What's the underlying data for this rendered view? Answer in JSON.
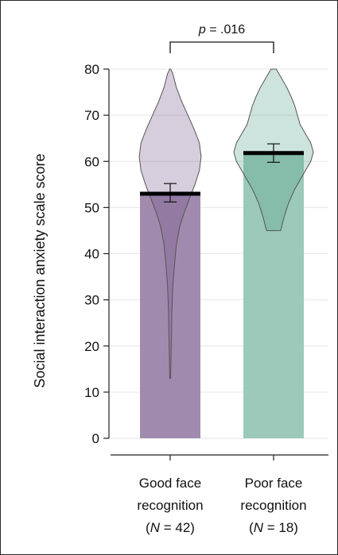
{
  "chart_data": {
    "type": "bar",
    "ylabel": "Social interaction anxiety scale score",
    "ylim": [
      0,
      80
    ],
    "yticks": [
      "0",
      "10",
      "20",
      "30",
      "40",
      "50",
      "60",
      "70",
      "80"
    ],
    "grid": true,
    "categories": [
      {
        "line1": "Good face",
        "line2": "recognition",
        "n_prefix": "(",
        "n_italic": "N",
        "n_suffix": " = 42)"
      },
      {
        "line1": "Poor face",
        "line2": "recognition",
        "n_prefix": "(",
        "n_italic": "N",
        "n_suffix": " = 18)"
      }
    ],
    "values": [
      53,
      61.8
    ],
    "error": [
      {
        "low": 51.2,
        "high": 55.2
      },
      {
        "low": 59.8,
        "high": 63.8
      }
    ],
    "violin": [
      {
        "min": 13,
        "max": 80,
        "density": [
          [
            13,
            0.005
          ],
          [
            18,
            0.01
          ],
          [
            23,
            0.015
          ],
          [
            28,
            0.02
          ],
          [
            33,
            0.03
          ],
          [
            38,
            0.05
          ],
          [
            42,
            0.07
          ],
          [
            46,
            0.11
          ],
          [
            49,
            0.16
          ],
          [
            52,
            0.22
          ],
          [
            55,
            0.28
          ],
          [
            58,
            0.33
          ],
          [
            61,
            0.35
          ],
          [
            64,
            0.33
          ],
          [
            67,
            0.27
          ],
          [
            70,
            0.2
          ],
          [
            73,
            0.13
          ],
          [
            76,
            0.07
          ],
          [
            79,
            0.03
          ],
          [
            80,
            0.005
          ]
        ]
      },
      {
        "min": 45,
        "max": 80,
        "density": [
          [
            45,
            0.08
          ],
          [
            48,
            0.12
          ],
          [
            51,
            0.17
          ],
          [
            54,
            0.24
          ],
          [
            57,
            0.33
          ],
          [
            60,
            0.42
          ],
          [
            62,
            0.45
          ],
          [
            64,
            0.42
          ],
          [
            66,
            0.36
          ],
          [
            68,
            0.3
          ],
          [
            70,
            0.27
          ],
          [
            72,
            0.24
          ],
          [
            74,
            0.2
          ],
          [
            76,
            0.15
          ],
          [
            78,
            0.09
          ],
          [
            80,
            0.03
          ]
        ]
      }
    ],
    "bar_colors": [
      "#a08bae",
      "#9cc9b9"
    ],
    "violin_colors": [
      "#6e4f84",
      "#4d9a84"
    ],
    "annotation": {
      "p_italic": "p",
      "p_rest": " = .016"
    }
  }
}
